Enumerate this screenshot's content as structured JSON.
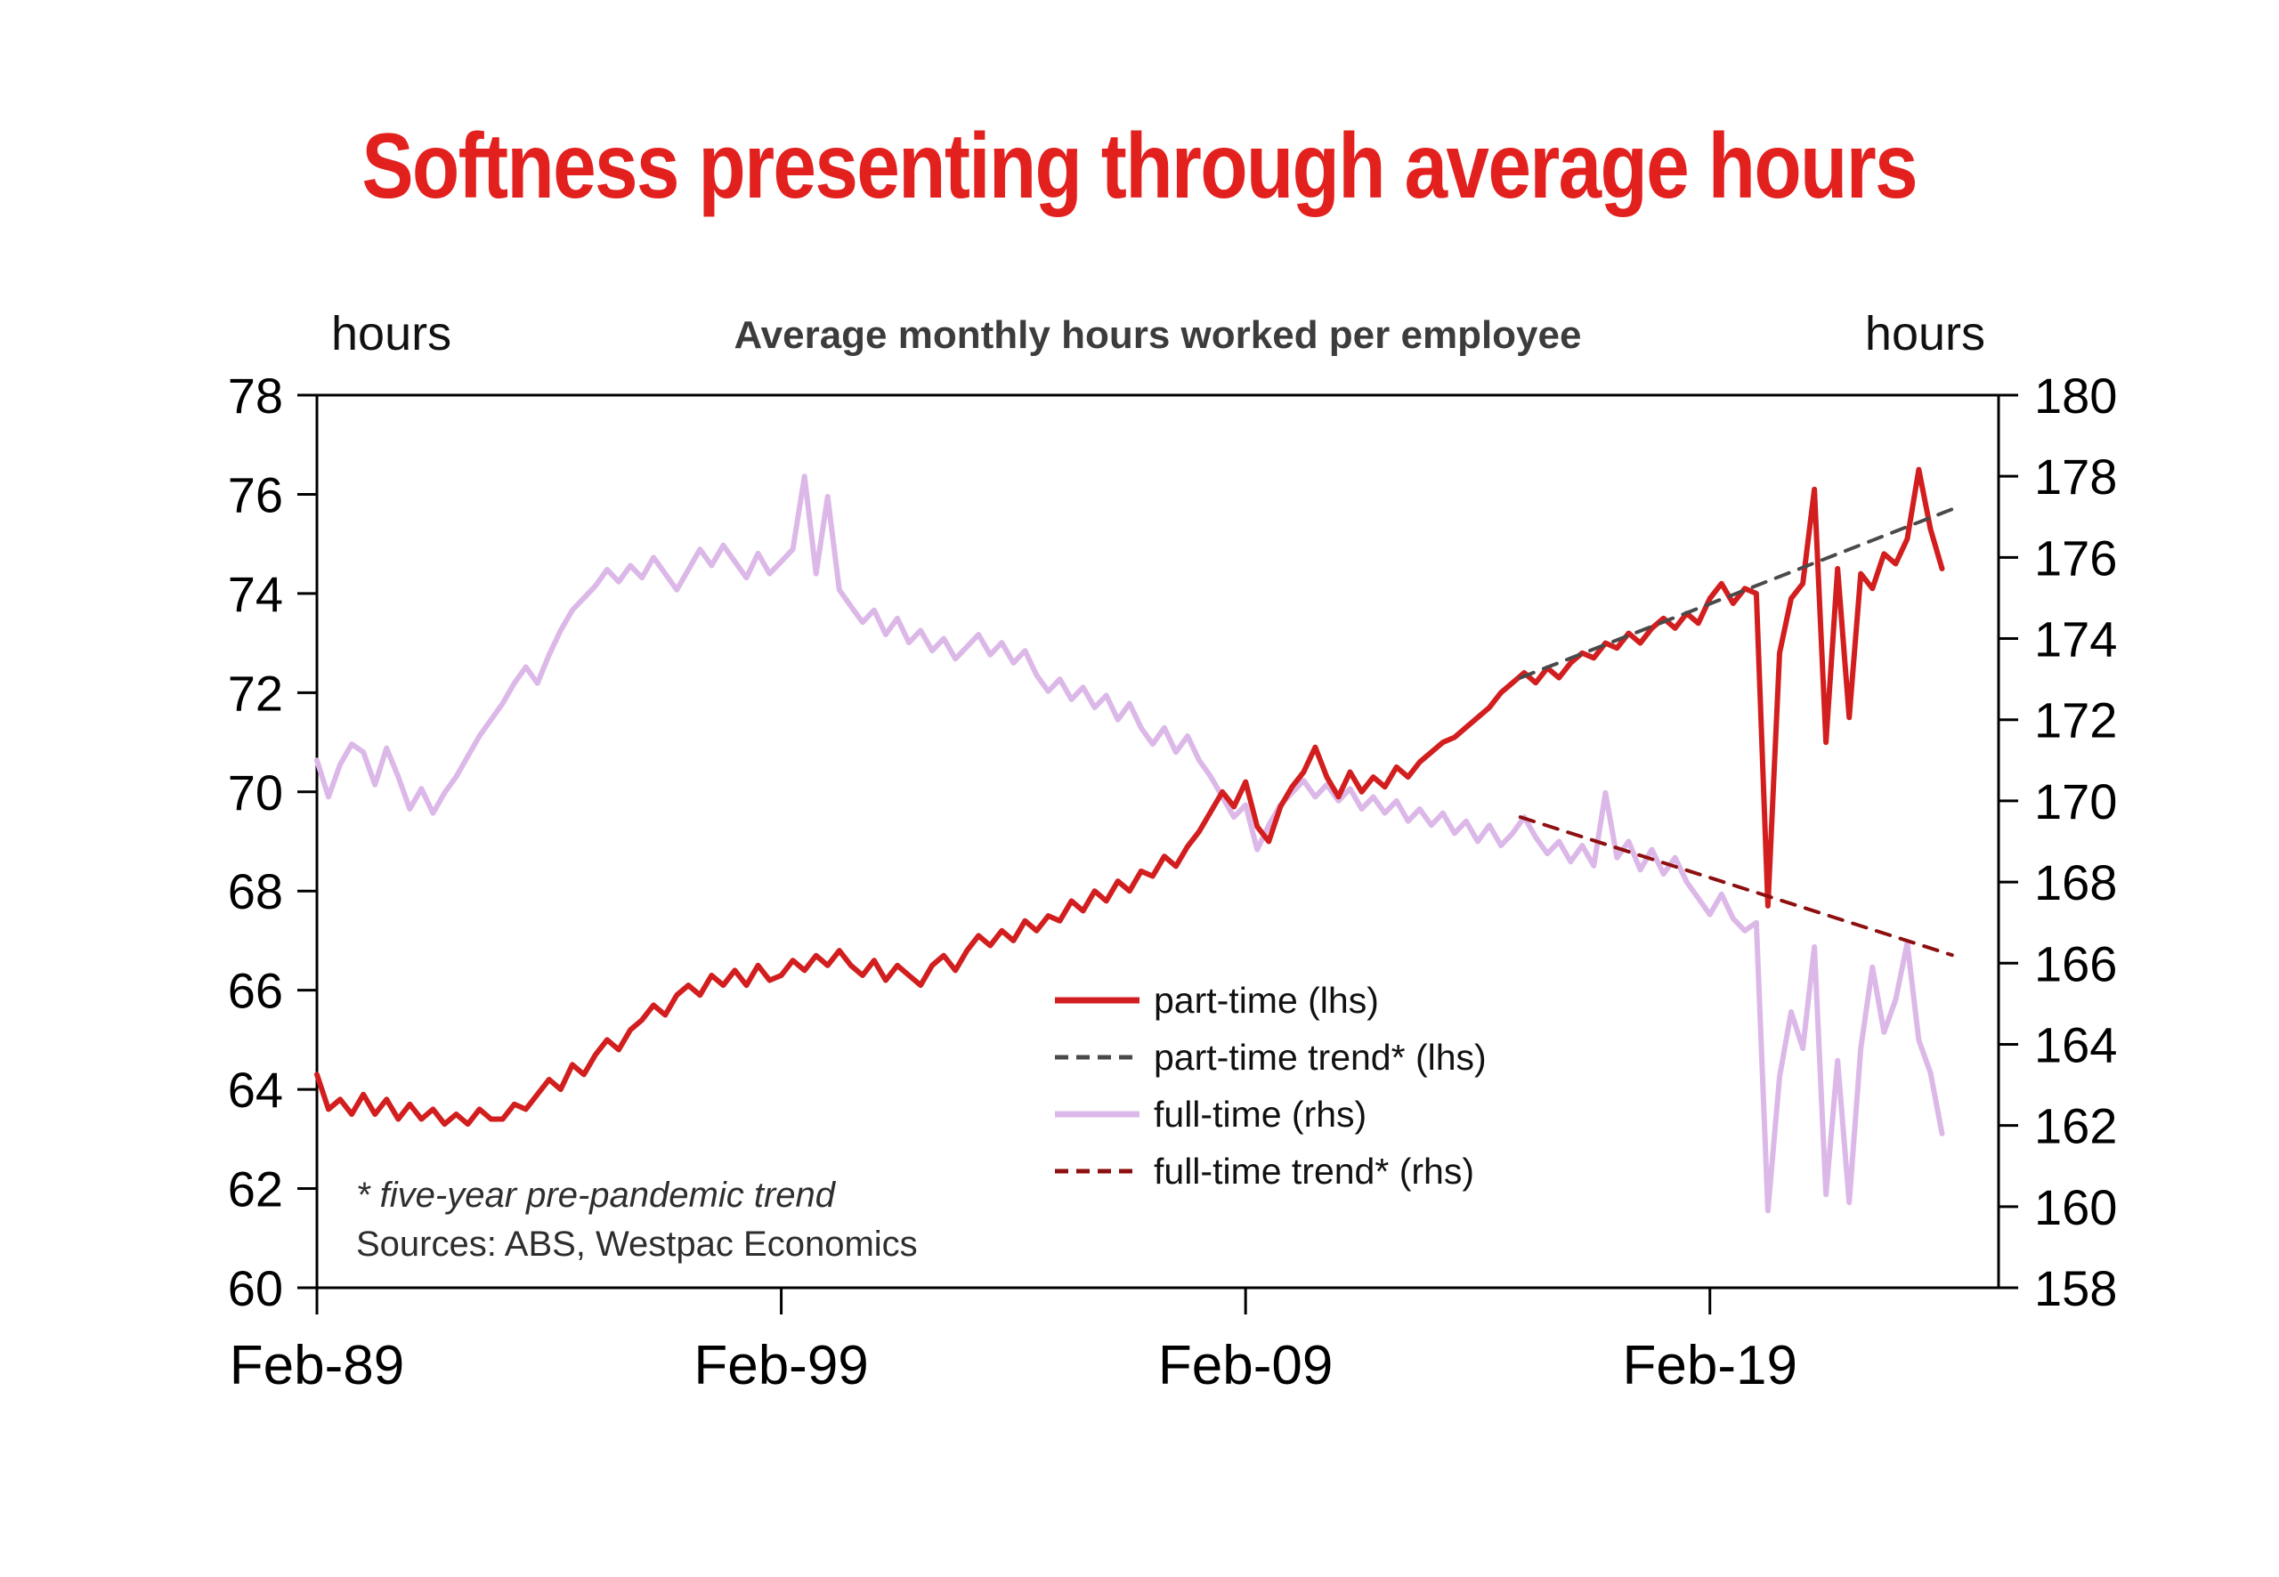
{
  "header": {
    "title": "Softness presenting through average hours",
    "title_color": "#e2211f"
  },
  "chart_data": {
    "type": "line",
    "title": "Average monthly hours worked per employee",
    "left_axis": {
      "unit": "hours",
      "range": [
        60,
        78
      ],
      "ticks": [
        60,
        62,
        64,
        66,
        68,
        70,
        72,
        74,
        76,
        78
      ]
    },
    "right_axis": {
      "unit": "hours",
      "range": [
        158,
        180
      ],
      "ticks": [
        158,
        160,
        162,
        164,
        166,
        168,
        170,
        172,
        174,
        176,
        178,
        180
      ]
    },
    "xlim": [
      1989.083,
      2025.3
    ],
    "x_ticks": [
      {
        "label": "Feb-89",
        "x": 1989.083
      },
      {
        "label": "Feb-99",
        "x": 1999.083
      },
      {
        "label": "Feb-09",
        "x": 2009.083
      },
      {
        "label": "Feb-19",
        "x": 2019.083
      }
    ],
    "frame_color": "#000000",
    "series": [
      {
        "key": "full-time",
        "name": "full-time (rhs)",
        "axis": "rhs",
        "color": "#dcb8e8",
        "stroke_width": 6,
        "dash": null,
        "x_start": 1989.083,
        "x_step": 0.25,
        "values": [
          171.0,
          170.1,
          170.9,
          171.4,
          171.2,
          170.4,
          171.3,
          170.6,
          169.8,
          170.3,
          169.7,
          170.2,
          170.6,
          171.1,
          171.6,
          172.0,
          172.4,
          172.9,
          173.3,
          172.9,
          173.6,
          174.2,
          174.7,
          175.0,
          175.3,
          175.7,
          175.4,
          175.8,
          175.5,
          176.0,
          175.6,
          175.2,
          175.7,
          176.2,
          175.8,
          176.3,
          175.9,
          175.5,
          176.1,
          175.6,
          175.9,
          176.2,
          178.0,
          175.6,
          177.5,
          175.2,
          174.8,
          174.4,
          174.7,
          174.1,
          174.5,
          173.9,
          174.2,
          173.7,
          174.0,
          173.5,
          173.8,
          174.1,
          173.6,
          173.9,
          173.4,
          173.7,
          173.1,
          172.7,
          173.0,
          172.5,
          172.8,
          172.3,
          172.6,
          172.0,
          172.4,
          171.8,
          171.4,
          171.8,
          171.2,
          171.6,
          171.0,
          170.6,
          170.1,
          169.6,
          169.9,
          168.8,
          169.4,
          169.9,
          170.2,
          170.5,
          170.1,
          170.4,
          170.0,
          170.3,
          169.8,
          170.1,
          169.7,
          170.0,
          169.5,
          169.8,
          169.4,
          169.7,
          169.2,
          169.5,
          169.0,
          169.4,
          168.9,
          169.2,
          169.6,
          169.1,
          168.7,
          169.0,
          168.5,
          168.9,
          168.4,
          170.2,
          168.6,
          169.0,
          168.3,
          168.8,
          168.2,
          168.6,
          168.0,
          167.6,
          167.2,
          167.7,
          167.1,
          166.8,
          167.0,
          159.9,
          163.2,
          164.8,
          163.9,
          166.4,
          160.3,
          163.6,
          160.1,
          163.9,
          165.9,
          164.3,
          165.1,
          166.5,
          164.1,
          163.3,
          161.8
        ]
      },
      {
        "key": "part-time",
        "name": "part-time (lhs)",
        "axis": "lhs",
        "color": "#d21e1e",
        "stroke_width": 6,
        "dash": null,
        "x_start": 1989.083,
        "x_step": 0.25,
        "values": [
          64.3,
          63.6,
          63.8,
          63.5,
          63.9,
          63.5,
          63.8,
          63.4,
          63.7,
          63.4,
          63.6,
          63.3,
          63.5,
          63.3,
          63.6,
          63.4,
          63.4,
          63.7,
          63.6,
          63.9,
          64.2,
          64.0,
          64.5,
          64.3,
          64.7,
          65.0,
          64.8,
          65.2,
          65.4,
          65.7,
          65.5,
          65.9,
          66.1,
          65.9,
          66.3,
          66.1,
          66.4,
          66.1,
          66.5,
          66.2,
          66.3,
          66.6,
          66.4,
          66.7,
          66.5,
          66.8,
          66.5,
          66.3,
          66.6,
          66.2,
          66.5,
          66.3,
          66.1,
          66.5,
          66.7,
          66.4,
          66.8,
          67.1,
          66.9,
          67.2,
          67.0,
          67.4,
          67.2,
          67.5,
          67.4,
          67.8,
          67.6,
          68.0,
          67.8,
          68.2,
          68.0,
          68.4,
          68.3,
          68.7,
          68.5,
          68.9,
          69.2,
          69.6,
          70.0,
          69.7,
          70.2,
          69.3,
          69.0,
          69.7,
          70.1,
          70.4,
          70.9,
          70.3,
          69.9,
          70.4,
          70.0,
          70.3,
          70.1,
          70.5,
          70.3,
          70.6,
          70.8,
          71.0,
          71.1,
          71.3,
          71.5,
          71.7,
          72.0,
          72.2,
          72.4,
          72.2,
          72.5,
          72.3,
          72.6,
          72.8,
          72.7,
          73.0,
          72.9,
          73.2,
          73.0,
          73.3,
          73.5,
          73.3,
          73.6,
          73.4,
          73.9,
          74.2,
          73.8,
          74.1,
          74.0,
          67.7,
          72.8,
          73.9,
          74.2,
          76.1,
          71.0,
          74.5,
          71.5,
          74.4,
          74.1,
          74.8,
          74.6,
          75.1,
          76.5,
          75.3,
          74.5
        ]
      },
      {
        "key": "part-time-trend",
        "name": "part-time trend* (lhs)",
        "axis": "lhs",
        "color": "#4a4a4a",
        "stroke_width": 4,
        "dash": "16 12",
        "x": [
          2015.0,
          2024.3
        ],
        "values": [
          72.3,
          75.7
        ]
      },
      {
        "key": "full-time-trend",
        "name": "full-time trend* (rhs)",
        "axis": "rhs",
        "color": "#8e0f0f",
        "stroke_width": 4,
        "dash": "16 12",
        "x": [
          2015.0,
          2024.3
        ],
        "values": [
          169.6,
          166.2
        ]
      }
    ],
    "legend": [
      {
        "label": "part-time (lhs)",
        "series": 1
      },
      {
        "label": "part-time trend* (lhs)",
        "series": 2
      },
      {
        "label": "full-time (rhs)",
        "series": 0
      },
      {
        "label": "full-time trend* (rhs)",
        "series": 3
      }
    ],
    "footnotes": {
      "trend_note": "* five-year pre-pandemic trend",
      "sources": "Sources: ABS, Westpac Economics"
    }
  }
}
